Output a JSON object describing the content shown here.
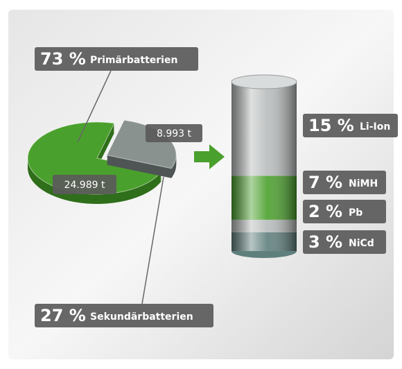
{
  "chart_data": [
    {
      "type": "pie",
      "categories": [
        "Primärbatterien",
        "Sekundärbatterien"
      ],
      "values": [
        73,
        27
      ],
      "value_labels": [
        "73 %",
        "27 %"
      ],
      "amounts": [
        24989,
        8993
      ],
      "amount_labels": [
        "24.989 t",
        "8.993 t"
      ],
      "colors": [
        "#4aa02c",
        "#8a9290"
      ]
    },
    {
      "type": "stacked-cylinder",
      "categories": [
        "Li-Ion",
        "NiMH",
        "Pb",
        "NiCd"
      ],
      "values": [
        15,
        7,
        2,
        3
      ],
      "value_labels": [
        "15 %",
        "7 %",
        "2 %",
        "3 %"
      ],
      "colors": [
        "#b8bcbc",
        "#4aa02c",
        "#b8bcbc",
        "#5f7f7d"
      ]
    }
  ]
}
